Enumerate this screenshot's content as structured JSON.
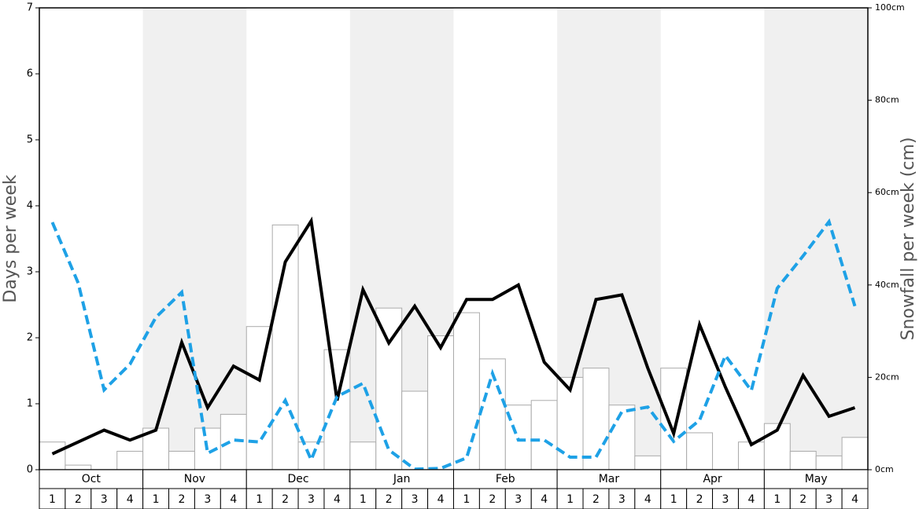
{
  "chart_data": {
    "type": "bar-line",
    "ylabel": "Days per week",
    "y2label": "Snowfall per week (cm)",
    "months": [
      "Oct",
      "Nov",
      "Dec",
      "Jan",
      "Feb",
      "Mar",
      "Apr",
      "May"
    ],
    "shaded_months": [
      "Nov",
      "Jan",
      "Mar",
      "May"
    ],
    "shade_color": "#f0f0f0",
    "categories": [
      "1",
      "2",
      "3",
      "4",
      "1",
      "2",
      "3",
      "4",
      "1",
      "2",
      "3",
      "4",
      "1",
      "2",
      "3",
      "4",
      "1",
      "2",
      "3",
      "4",
      "1",
      "2",
      "3",
      "4",
      "1",
      "2",
      "3",
      "4",
      "1",
      "2",
      "3",
      "4"
    ],
    "ylim": [
      0,
      7
    ],
    "yticks": [
      0,
      1,
      2,
      3,
      4,
      5,
      6,
      7
    ],
    "y2lim": [
      0,
      100
    ],
    "y2ticks": [
      {
        "value": 0,
        "label": "0cm"
      },
      {
        "value": 20,
        "label": "20cm"
      },
      {
        "value": 40,
        "label": "40cm"
      },
      {
        "value": 60,
        "label": "60cm"
      },
      {
        "value": 80,
        "label": "80cm"
      },
      {
        "value": 100,
        "label": "100cm"
      }
    ],
    "series": [
      {
        "type": "bar",
        "axis": "y2",
        "color": "#ffffff",
        "stroke": "#aaaaaa",
        "values": [
          6,
          1,
          0,
          4,
          9,
          4,
          9,
          12,
          31,
          53,
          6,
          26,
          6,
          35,
          17,
          29,
          34,
          24,
          14,
          15,
          20,
          22,
          14,
          3,
          22,
          8,
          0,
          6,
          10,
          4,
          3,
          7
        ]
      },
      {
        "type": "line",
        "color": "#000000",
        "dash": false,
        "values": [
          0.24,
          0.42,
          0.6,
          0.45,
          0.6,
          1.93,
          0.94,
          1.57,
          1.36,
          3.15,
          3.77,
          1.05,
          2.73,
          1.92,
          2.48,
          1.85,
          2.58,
          2.58,
          2.8,
          1.63,
          1.21,
          2.58,
          2.65,
          1.54,
          0.55,
          2.2,
          1.25,
          0.38,
          0.6,
          1.43,
          0.81,
          0.94
        ]
      },
      {
        "type": "line",
        "color": "#1ea1e6",
        "dash": true,
        "values": [
          3.75,
          2.83,
          1.21,
          1.6,
          2.31,
          2.69,
          0.25,
          0.45,
          0.42,
          1.05,
          0.15,
          1.11,
          1.31,
          0.3,
          0.01,
          0.02,
          0.18,
          1.46,
          0.45,
          0.45,
          0.19,
          0.19,
          0.88,
          0.95,
          0.43,
          0.75,
          1.73,
          1.2,
          2.75,
          3.24,
          3.76,
          2.48
        ]
      }
    ]
  }
}
